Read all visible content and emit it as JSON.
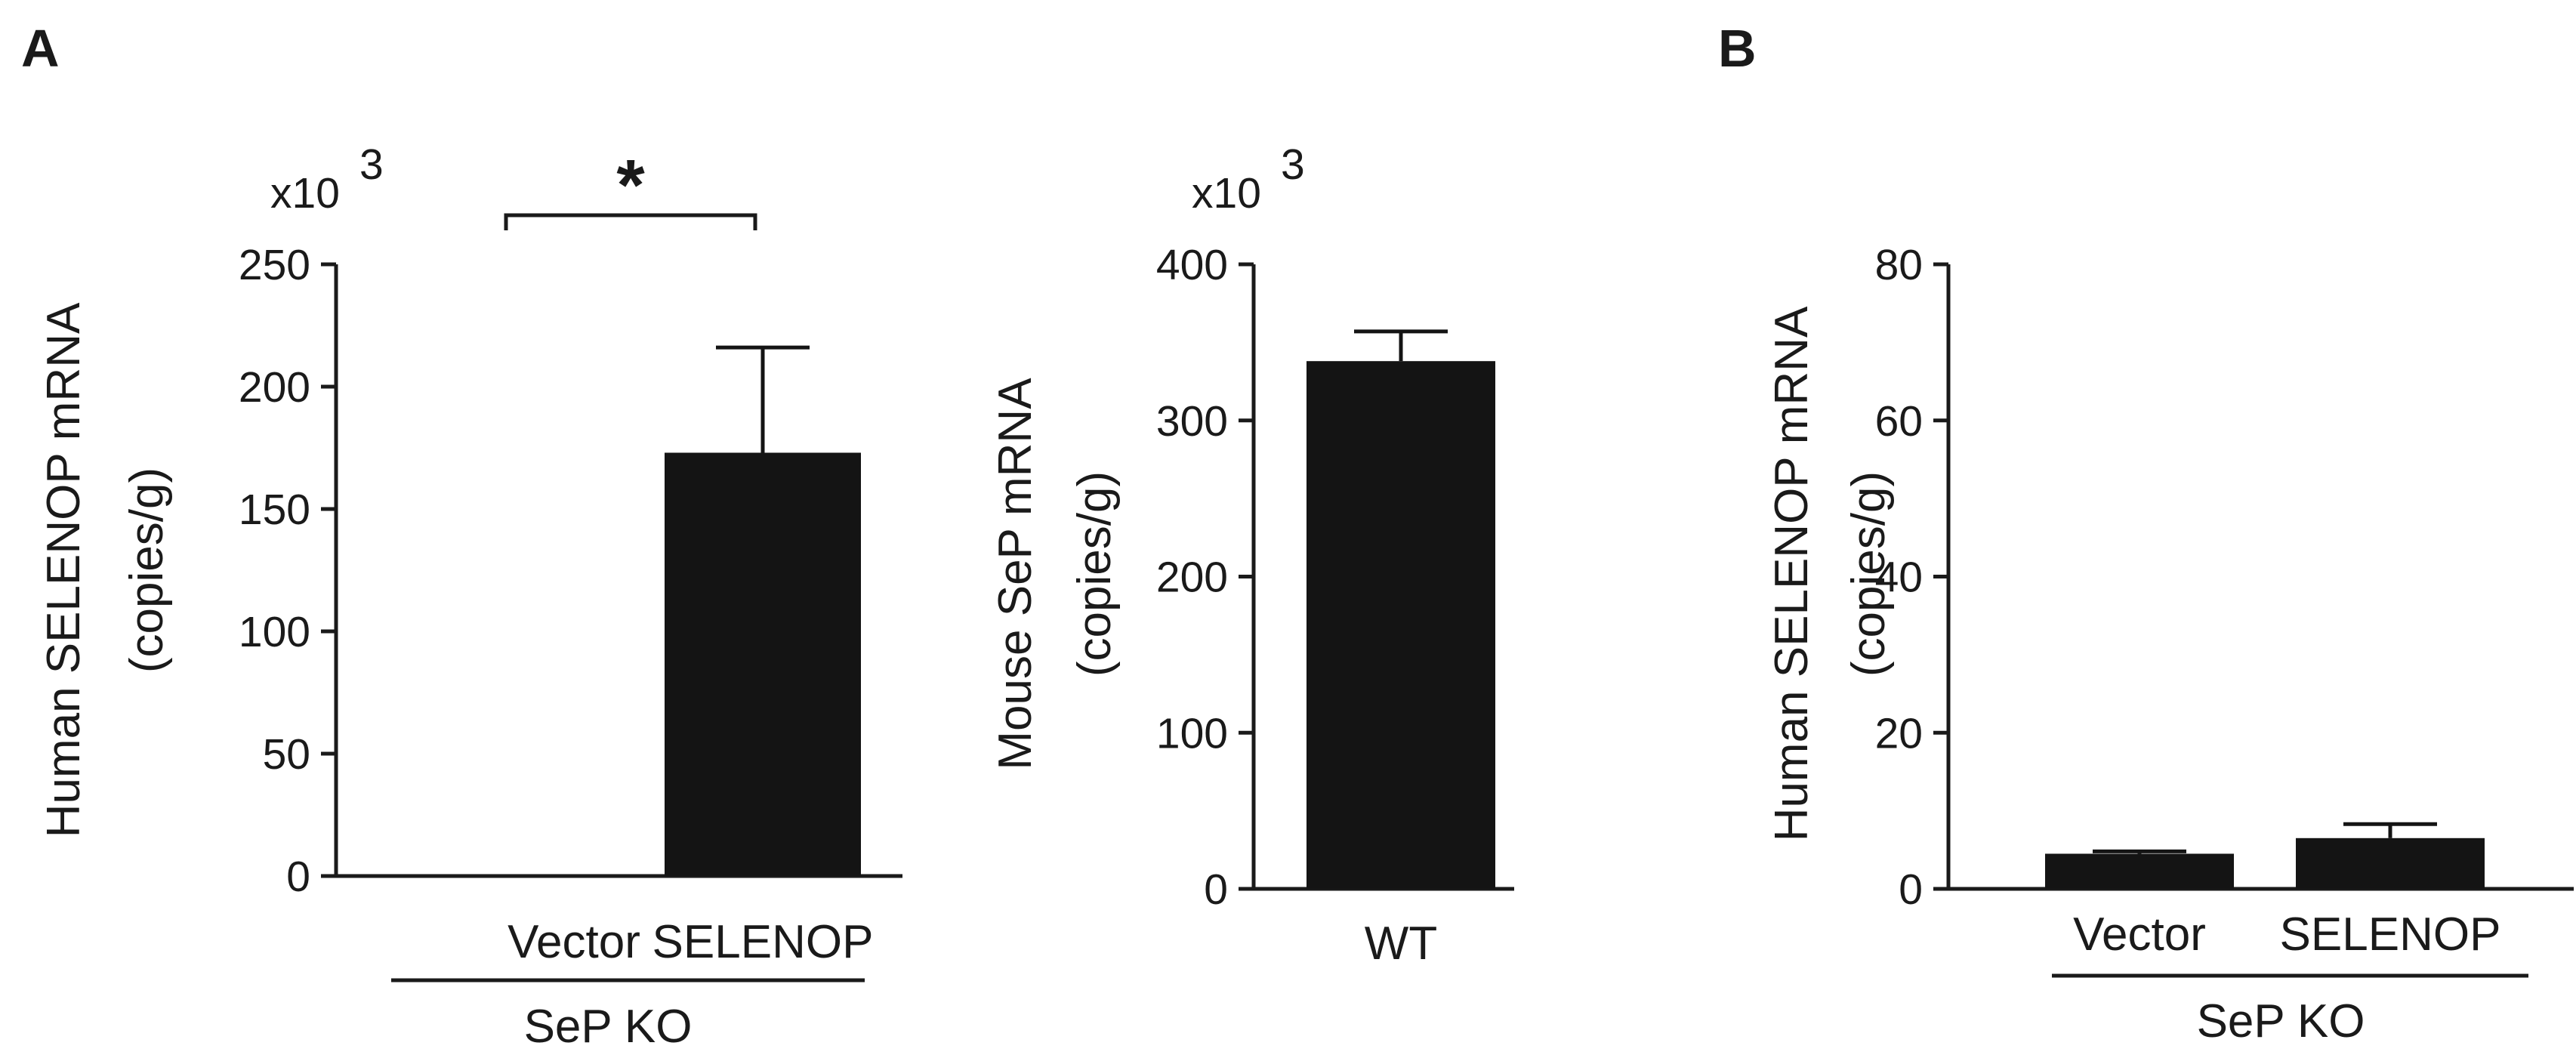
{
  "panel_labels": {
    "A": "A",
    "B": "B"
  },
  "chart_data": [
    {
      "id": "A1",
      "type": "bar",
      "ylabel_line1": "Human SELENOP mRNA",
      "ylabel_line2": "(copies/g)",
      "y_multiplier": "x10",
      "y_multiplier_exp": "3",
      "ylim": [
        0,
        250
      ],
      "yticks": [
        "0",
        "50",
        "100",
        "150",
        "200",
        "250"
      ],
      "categories": [
        "Vector",
        "SELENOP"
      ],
      "values": [
        0,
        173
      ],
      "errors": [
        0,
        43
      ],
      "group_label": "SeP KO",
      "significance": {
        "between": [
          0,
          1
        ],
        "label": "*"
      }
    },
    {
      "id": "A2",
      "type": "bar",
      "ylabel_line1": "Mouse SeP mRNA",
      "ylabel_line2": "(copies/g)",
      "y_multiplier": "x10",
      "y_multiplier_exp": "3",
      "ylim": [
        0,
        400
      ],
      "yticks": [
        "0",
        "100",
        "200",
        "300",
        "400"
      ],
      "categories": [
        "WT"
      ],
      "values": [
        338
      ],
      "errors": [
        19
      ]
    },
    {
      "id": "B",
      "type": "bar",
      "ylabel_line1": "Human SELENOP mRNA",
      "ylabel_line2": "(copies/g)",
      "ylim": [
        0,
        80
      ],
      "yticks": [
        "0",
        "20",
        "40",
        "60",
        "80"
      ],
      "categories": [
        "Vector",
        "SELENOP"
      ],
      "values": [
        4.5,
        6.5
      ],
      "errors": [
        0.3,
        1.8
      ],
      "group_label": "SeP KO"
    }
  ]
}
